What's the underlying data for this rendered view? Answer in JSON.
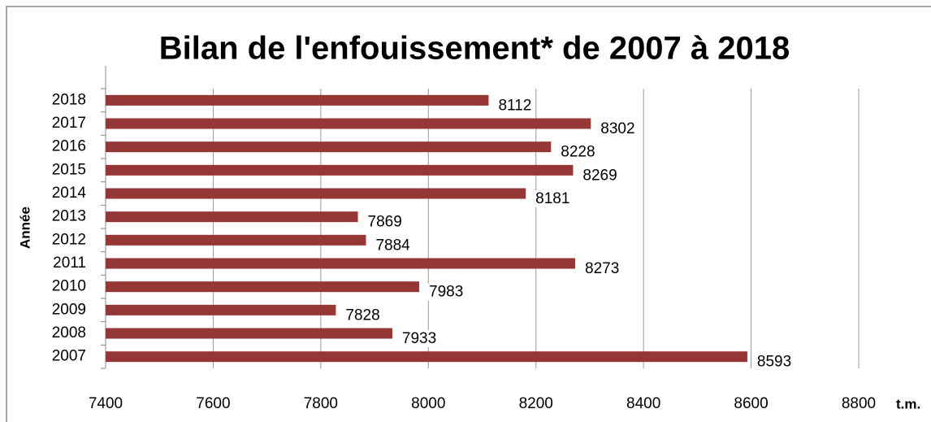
{
  "chart_data": {
    "type": "bar",
    "orientation": "horizontal",
    "title": "Bilan de l'enfouissement* de 2007 à 2018",
    "y_label": "Année",
    "x_label": "t.m.",
    "categories": [
      "2007",
      "2008",
      "2009",
      "2010",
      "2011",
      "2012",
      "2013",
      "2014",
      "2015",
      "2016",
      "2017",
      "2018"
    ],
    "values": [
      8593,
      7933,
      7828,
      7983,
      8273,
      7884,
      7869,
      8181,
      8269,
      8228,
      8302,
      8112
    ],
    "color": "#953735",
    "xlim": [
      7400,
      8800
    ],
    "xticks": [
      7400,
      7600,
      7800,
      8000,
      8200,
      8400,
      8600,
      8800
    ],
    "grid": true
  }
}
